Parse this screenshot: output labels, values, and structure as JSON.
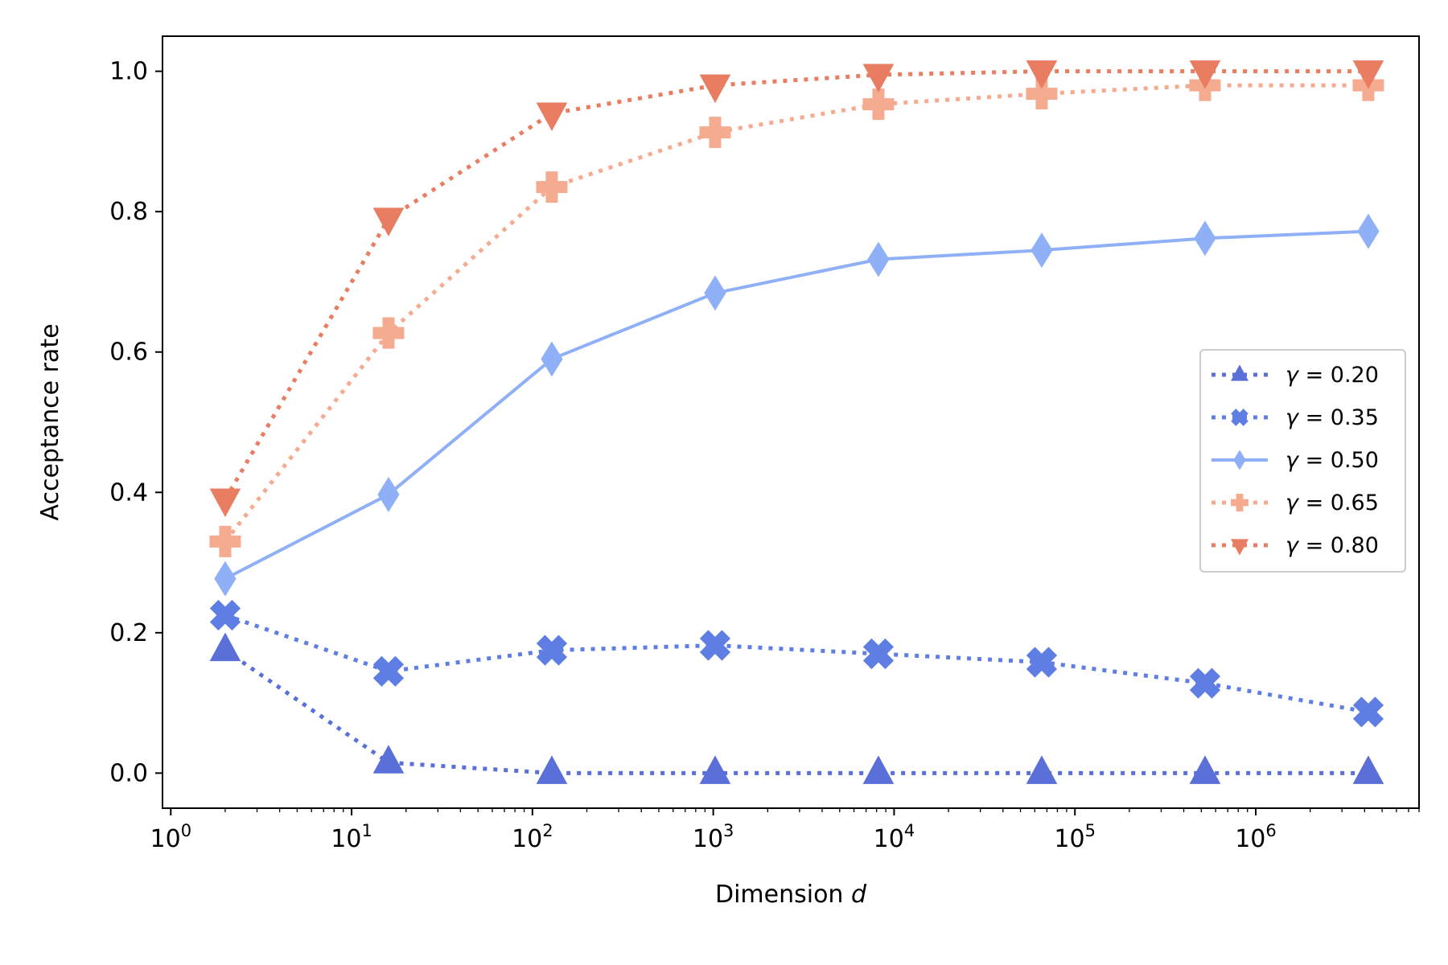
{
  "chart_data": {
    "type": "line",
    "title": "",
    "xlabel": "Dimension",
    "xlabel_var": "d",
    "ylabel": "Acceptance rate",
    "xscale": "log",
    "xlim": [
      0.9,
      8000000
    ],
    "ylim": [
      -0.05,
      1.05
    ],
    "grid": false,
    "legend_position": "center-right",
    "x_ticks": [
      {
        "base": "10",
        "exp": "0",
        "value": 1
      },
      {
        "base": "10",
        "exp": "1",
        "value": 10
      },
      {
        "base": "10",
        "exp": "2",
        "value": 100
      },
      {
        "base": "10",
        "exp": "3",
        "value": 1000
      },
      {
        "base": "10",
        "exp": "4",
        "value": 10000
      },
      {
        "base": "10",
        "exp": "5",
        "value": 100000
      },
      {
        "base": "10",
        "exp": "6",
        "value": 1000000
      }
    ],
    "y_ticks": [
      {
        "label": "0.0",
        "value": 0.0
      },
      {
        "label": "0.2",
        "value": 0.2
      },
      {
        "label": "0.4",
        "value": 0.4
      },
      {
        "label": "0.6",
        "value": 0.6
      },
      {
        "label": "0.8",
        "value": 0.8
      },
      {
        "label": "1.0",
        "value": 1.0
      }
    ],
    "x": [
      2,
      16,
      128,
      1024,
      8192,
      65536,
      524288,
      4194304
    ],
    "series": [
      {
        "name": "γ = 0.20",
        "symbol": "γ",
        "eq": "= 0.20",
        "color": "#5a6fd8",
        "marker": "triangle-up",
        "linestyle": "dotted",
        "values": [
          0.175,
          0.015,
          0.0,
          0.0,
          0.0,
          0.0,
          0.0,
          0.0
        ]
      },
      {
        "name": "γ = 0.35",
        "symbol": "γ",
        "eq": "= 0.35",
        "color": "#5f7ee4",
        "marker": "x-filled",
        "linestyle": "dotted",
        "values": [
          0.225,
          0.145,
          0.175,
          0.182,
          0.17,
          0.158,
          0.128,
          0.087
        ]
      },
      {
        "name": "γ = 0.50",
        "symbol": "γ",
        "eq": "= 0.50",
        "color": "#8fb0f6",
        "marker": "thin-diamond",
        "linestyle": "solid",
        "values": [
          0.277,
          0.397,
          0.59,
          0.684,
          0.732,
          0.745,
          0.762,
          0.772
        ]
      },
      {
        "name": "γ = 0.65",
        "symbol": "γ",
        "eq": "= 0.65",
        "color": "#f5ab90",
        "marker": "plus-filled",
        "linestyle": "dotted",
        "values": [
          0.33,
          0.627,
          0.835,
          0.913,
          0.953,
          0.968,
          0.98,
          0.98
        ]
      },
      {
        "name": "γ = 0.80",
        "symbol": "γ",
        "eq": "= 0.80",
        "color": "#e97d62",
        "marker": "triangle-down",
        "linestyle": "dotted",
        "values": [
          0.39,
          0.79,
          0.94,
          0.98,
          0.995,
          1.0,
          1.0,
          1.0
        ]
      }
    ]
  }
}
